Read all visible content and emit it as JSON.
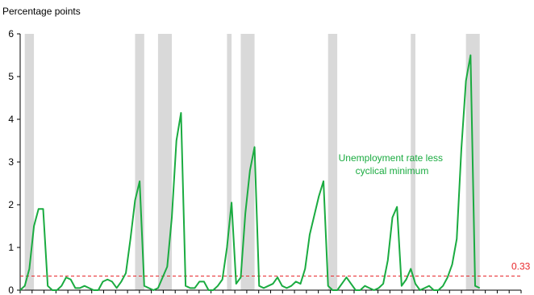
{
  "chart_data": {
    "type": "line",
    "title": "",
    "ylabel": "Percentage points",
    "xlabel": "",
    "ylim": [
      0,
      6
    ],
    "yticks": [
      "0",
      "1",
      "2",
      "3",
      "4",
      "5",
      "6"
    ],
    "grid": false,
    "series": [
      {
        "name": "Unemployment rate less cyclical minimum",
        "color": "#1aab40",
        "x": [
          0,
          1,
          2,
          3,
          4,
          5,
          6,
          7,
          8,
          9,
          10,
          11,
          12,
          13,
          14,
          15,
          16,
          17,
          18,
          19,
          20,
          21,
          22,
          23,
          24,
          25,
          26,
          27,
          28,
          29,
          30,
          31,
          32,
          33,
          34,
          35,
          36,
          37,
          38,
          39,
          40,
          41,
          42,
          43,
          44,
          45,
          46,
          47,
          48,
          49,
          50,
          51,
          52,
          53,
          54,
          55,
          56,
          57,
          58,
          59,
          60,
          61,
          62,
          63,
          64,
          65,
          66,
          67,
          68,
          69,
          70,
          71,
          72,
          73,
          74,
          75,
          76,
          77,
          78,
          79,
          80,
          81,
          82,
          83,
          84,
          85,
          86,
          87,
          88,
          89,
          90,
          91,
          92,
          93,
          94,
          95,
          96,
          97,
          98,
          99,
          100
        ],
        "values": [
          0,
          0.1,
          0.5,
          1.5,
          1.9,
          1.9,
          0.1,
          0,
          0,
          0.1,
          0.3,
          0.25,
          0.05,
          0.05,
          0.1,
          0.05,
          0,
          0,
          0.2,
          0.25,
          0.2,
          0.05,
          0.2,
          0.4,
          1.2,
          2.1,
          2.55,
          0.1,
          0.05,
          0,
          0.05,
          0.3,
          0.55,
          1.7,
          3.5,
          4.15,
          0.1,
          0.05,
          0.05,
          0.2,
          0.2,
          0,
          0,
          0.1,
          0.25,
          1.0,
          2.05,
          0.15,
          0.3,
          1.8,
          2.8,
          3.35,
          0.1,
          0.05,
          0.1,
          0.15,
          0.3,
          0.1,
          0.05,
          0.1,
          0.2,
          0.15,
          0.5,
          1.3,
          1.75,
          2.2,
          2.55,
          0.1,
          0,
          0,
          0.15,
          0.3,
          0.15,
          0,
          0,
          0.1,
          0.05,
          0,
          0.05,
          0.15,
          0.7,
          1.7,
          1.95,
          0.1,
          0.25,
          0.5,
          0.15,
          0,
          0.05,
          0.1,
          0,
          0,
          0.1,
          0.3,
          0.6,
          1.2,
          3.3,
          4.9,
          5.5,
          0.1,
          0.05
        ]
      }
    ],
    "recessions": [
      [
        1,
        3
      ],
      [
        25,
        27
      ],
      [
        30,
        33
      ],
      [
        45,
        46
      ],
      [
        48,
        51
      ],
      [
        67,
        69
      ],
      [
        85,
        86
      ],
      [
        97,
        100
      ]
    ],
    "reference_line": {
      "value": 0.33,
      "label": "0.33",
      "color": "#e8262a"
    },
    "annotation": {
      "lines": [
        "Unemployment rate less",
        "cyclical minimum"
      ],
      "color": "#1aab40"
    },
    "recession_color": "#d9d9d9",
    "xlim": [
      0,
      109
    ]
  }
}
